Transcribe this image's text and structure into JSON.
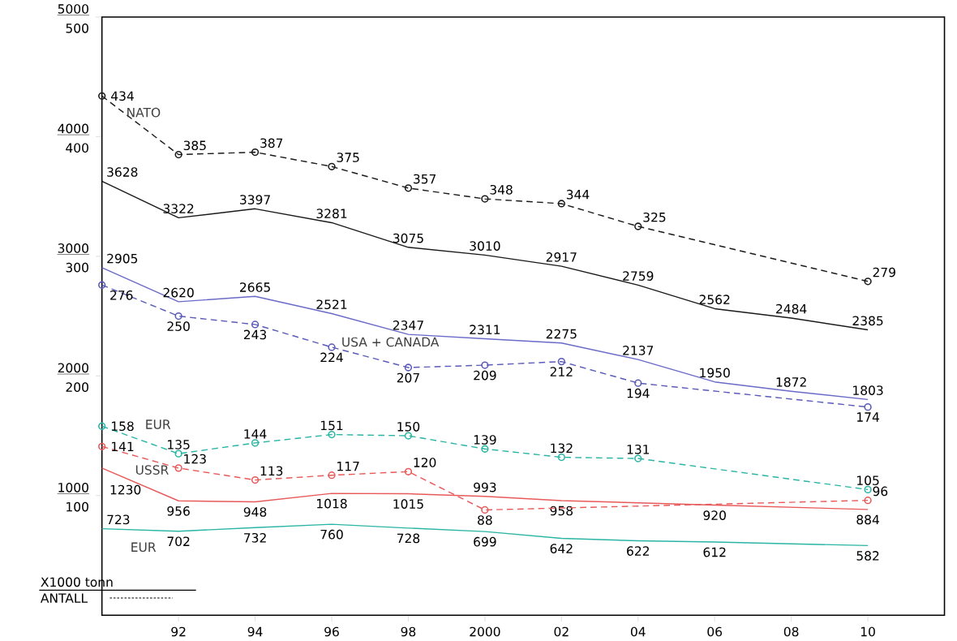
{
  "chart_data": {
    "type": "line",
    "annotations": [
      "X1000 tonn",
      "ANTALL"
    ],
    "x": [
      1990,
      1992,
      1994,
      1996,
      1998,
      2000,
      2002,
      2004,
      2006,
      2008,
      2010
    ],
    "xlim": [
      1990,
      2012
    ],
    "ylim": [
      0,
      5000
    ],
    "y2lim": [
      0,
      500
    ],
    "xticks": [
      {
        "value": 1992,
        "label": "92"
      },
      {
        "value": 1994,
        "label": "94"
      },
      {
        "value": 1996,
        "label": "96"
      },
      {
        "value": 1998,
        "label": "98"
      },
      2000,
      {
        "value": 2002,
        "label": "02"
      },
      {
        "value": 2004,
        "label": "04"
      },
      {
        "value": 2006,
        "label": "06"
      },
      {
        "value": 2008,
        "label": "08"
      },
      {
        "value": 2010,
        "label": "10"
      }
    ],
    "yticks": [
      1000,
      2000,
      3000,
      4000,
      5000
    ],
    "y2ticks": [
      100,
      200,
      300,
      400,
      500
    ],
    "data_labels": true,
    "grid": false,
    "series": [
      {
        "color": "#1a1a1a",
        "marker": "none",
        "line_style": "solid",
        "values": [
          3628,
          3322,
          3397,
          3281,
          3075,
          3010,
          2917,
          2759,
          2562,
          2484,
          2385
        ]
      },
      {
        "name": "NATO",
        "color": "#1a1a1a",
        "marker": "circle",
        "line_style": "dashed",
        "axis": "y2",
        "x": [
          1990,
          1992,
          1994,
          1996,
          1998,
          2000,
          2002,
          2004,
          2010
        ],
        "values": [
          434,
          385,
          387,
          375,
          357,
          348,
          344,
          325,
          279
        ]
      },
      {
        "color": "#6a6ac8",
        "marker": "none",
        "line_style": "solid",
        "values": [
          2905,
          2620,
          2665,
          2521,
          2347,
          2311,
          2275,
          2137,
          1950,
          1872,
          1803
        ]
      },
      {
        "name": "USA + CANADA",
        "color": "#5a5ab8",
        "marker": "circle",
        "line_style": "dashed",
        "axis": "y2",
        "x": [
          1990,
          1992,
          1994,
          1996,
          1998,
          2000,
          2002,
          2004,
          2010
        ],
        "values": [
          276,
          250,
          243,
          224,
          207,
          209,
          212,
          194,
          174
        ]
      },
      {
        "name": "EUR",
        "color": "#2ab5a5",
        "marker": "circle",
        "line_style": "dashed",
        "axis": "y2",
        "x": [
          1990,
          1992,
          1994,
          1996,
          1998,
          2000,
          2002,
          2004,
          2010
        ],
        "values": [
          158,
          135,
          144,
          151,
          150,
          139,
          132,
          131,
          105
        ]
      },
      {
        "name": "USSR",
        "color": "#e85a5a",
        "marker": "circle",
        "line_style": "dashed",
        "axis": "y2",
        "x": [
          1990,
          1992,
          1994,
          1996,
          1998,
          2000,
          2010
        ],
        "values": [
          141,
          123,
          113,
          117,
          120,
          88,
          96
        ]
      },
      {
        "color": "#e85a5a",
        "marker": "none",
        "line_style": "solid",
        "x": [
          1990,
          1992,
          1994,
          1996,
          1998,
          2000,
          2002,
          2006,
          2010
        ],
        "values": [
          1230,
          956,
          948,
          1018,
          1015,
          993,
          958,
          920,
          884
        ]
      },
      {
        "name": "EUR",
        "color": "#2ab5a5",
        "marker": "none",
        "line_style": "solid",
        "x": [
          1990,
          1992,
          1994,
          1996,
          1998,
          2000,
          2002,
          2004,
          2006,
          2010
        ],
        "values": [
          723,
          702,
          732,
          760,
          728,
          699,
          642,
          622,
          612,
          582
        ]
      }
    ]
  }
}
